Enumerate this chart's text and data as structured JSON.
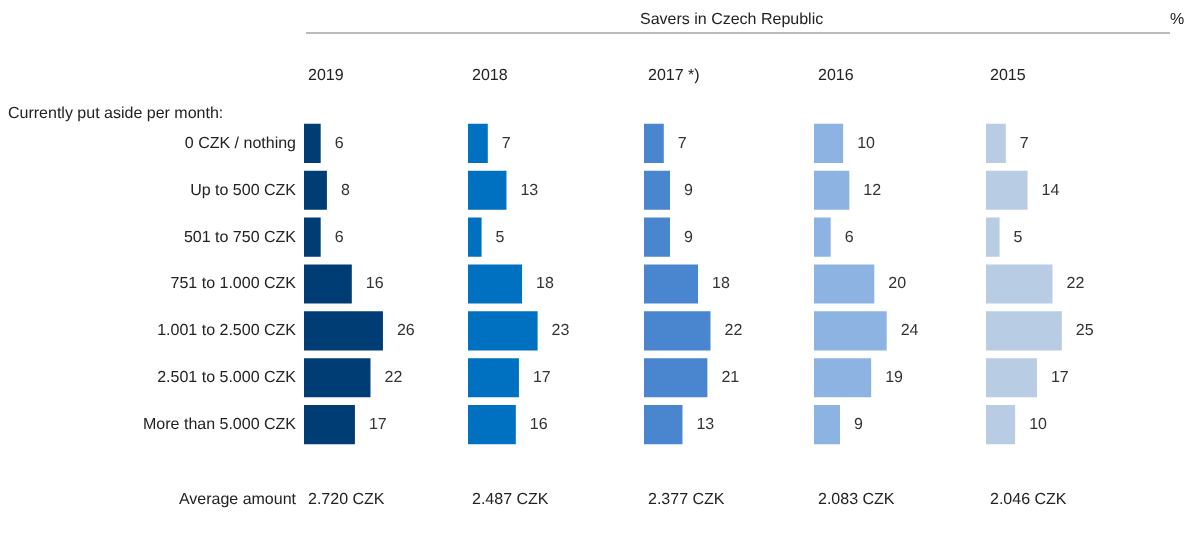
{
  "chart_data": [
    {
      "type": "bar",
      "orientation": "horizontal",
      "title": "2019",
      "categories": [
        "0 CZK / nothing",
        "Up to 500 CZK",
        "501 to 750 CZK",
        "751 to 1.000 CZK",
        "1.001 to 2.500 CZK",
        "2.501 to 5.000 CZK",
        "More than 5.000 CZK"
      ],
      "values": [
        6,
        8,
        6,
        16,
        26,
        22,
        17
      ],
      "color": "#003d75",
      "data_labels": true,
      "tick_labels": "y",
      "legend": false,
      "annotations": [
        "Savers in Czech Republic",
        "%",
        "Currently put aside per month:",
        "Average amount",
        "2.720 CZK"
      ]
    },
    {
      "type": "bar",
      "orientation": "horizontal",
      "title": "2018",
      "categories": [
        null,
        null,
        null,
        null,
        null,
        null,
        null
      ],
      "values": [
        7,
        13,
        5,
        18,
        23,
        17,
        16
      ],
      "color": "#0070c0",
      "data_labels": true,
      "tick_labels": false,
      "legend": false,
      "annotations": [
        "2.487 CZK"
      ]
    },
    {
      "type": "bar",
      "orientation": "horizontal",
      "title": "2017 *)",
      "categories": [
        null,
        null,
        null,
        null,
        null,
        null,
        null
      ],
      "values": [
        7,
        9,
        9,
        18,
        22,
        21,
        13
      ],
      "color": "#4a85d0",
      "data_labels": true,
      "tick_labels": false,
      "legend": false,
      "annotations": [
        "2.377 CZK"
      ]
    },
    {
      "type": "bar",
      "orientation": "horizontal",
      "title": "2016",
      "categories": [
        null,
        null,
        null,
        null,
        null,
        null,
        null
      ],
      "values": [
        10,
        12,
        6,
        20,
        24,
        19,
        9
      ],
      "color": "#8db3e2",
      "data_labels": true,
      "tick_labels": false,
      "legend": false,
      "annotations": [
        "2.083 CZK"
      ]
    },
    {
      "type": "bar",
      "orientation": "horizontal",
      "title": "2015",
      "categories": [
        null,
        null,
        null,
        null,
        null,
        null,
        null
      ],
      "values": [
        7,
        14,
        5,
        22,
        25,
        17,
        10
      ],
      "color": "#b8cce4",
      "data_labels": true,
      "tick_labels": false,
      "legend": false,
      "annotations": [
        "2.046 CZK"
      ]
    }
  ]
}
